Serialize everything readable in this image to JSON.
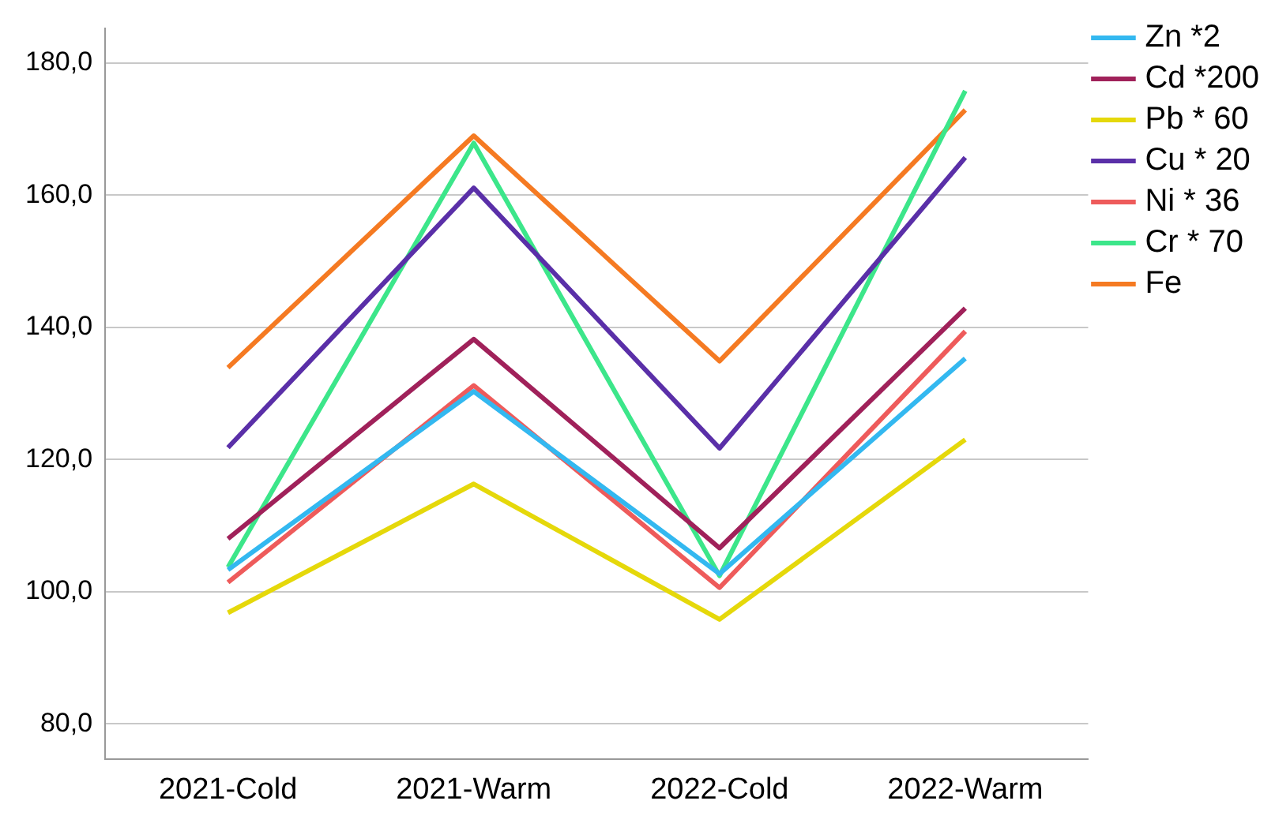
{
  "chart_data": {
    "type": "line",
    "categories": [
      "2021-Cold",
      "2021-Warm",
      "2022-Cold",
      "2022-Warm"
    ],
    "series": [
      {
        "name": "Zn *2",
        "color": "#33b8f0",
        "values": [
          103.3,
          130.3,
          102.7,
          135.3
        ]
      },
      {
        "name": "Cd *200",
        "color": "#a0215a",
        "values": [
          108.0,
          138.2,
          106.6,
          142.9
        ]
      },
      {
        "name": "Pb * 60",
        "color": "#e5d80a",
        "values": [
          96.8,
          116.3,
          95.8,
          123.0
        ]
      },
      {
        "name": "Cu * 20",
        "color": "#5a2fa8",
        "values": [
          121.8,
          161.1,
          121.7,
          165.7
        ]
      },
      {
        "name": "Ni * 36",
        "color": "#ee5b5b",
        "values": [
          101.4,
          131.2,
          100.6,
          139.4
        ]
      },
      {
        "name": "Cr * 70",
        "color": "#3ce68a",
        "values": [
          103.7,
          167.9,
          102.4,
          175.8
        ]
      },
      {
        "name": "Fe",
        "color": "#f57a22",
        "values": [
          133.9,
          169.0,
          134.9,
          172.9
        ]
      }
    ],
    "ylim": [
      74.6,
      185.2
    ],
    "yticks": [
      {
        "value": 80,
        "label": "80,0"
      },
      {
        "value": 100,
        "label": "100,0"
      },
      {
        "value": 120,
        "label": "120,0"
      },
      {
        "value": 140,
        "label": "140,0"
      },
      {
        "value": 160,
        "label": "160,0"
      },
      {
        "value": 180,
        "label": "180,0"
      }
    ],
    "grid": "y",
    "legend": "top right",
    "marker": "none",
    "line_style": "solid"
  }
}
